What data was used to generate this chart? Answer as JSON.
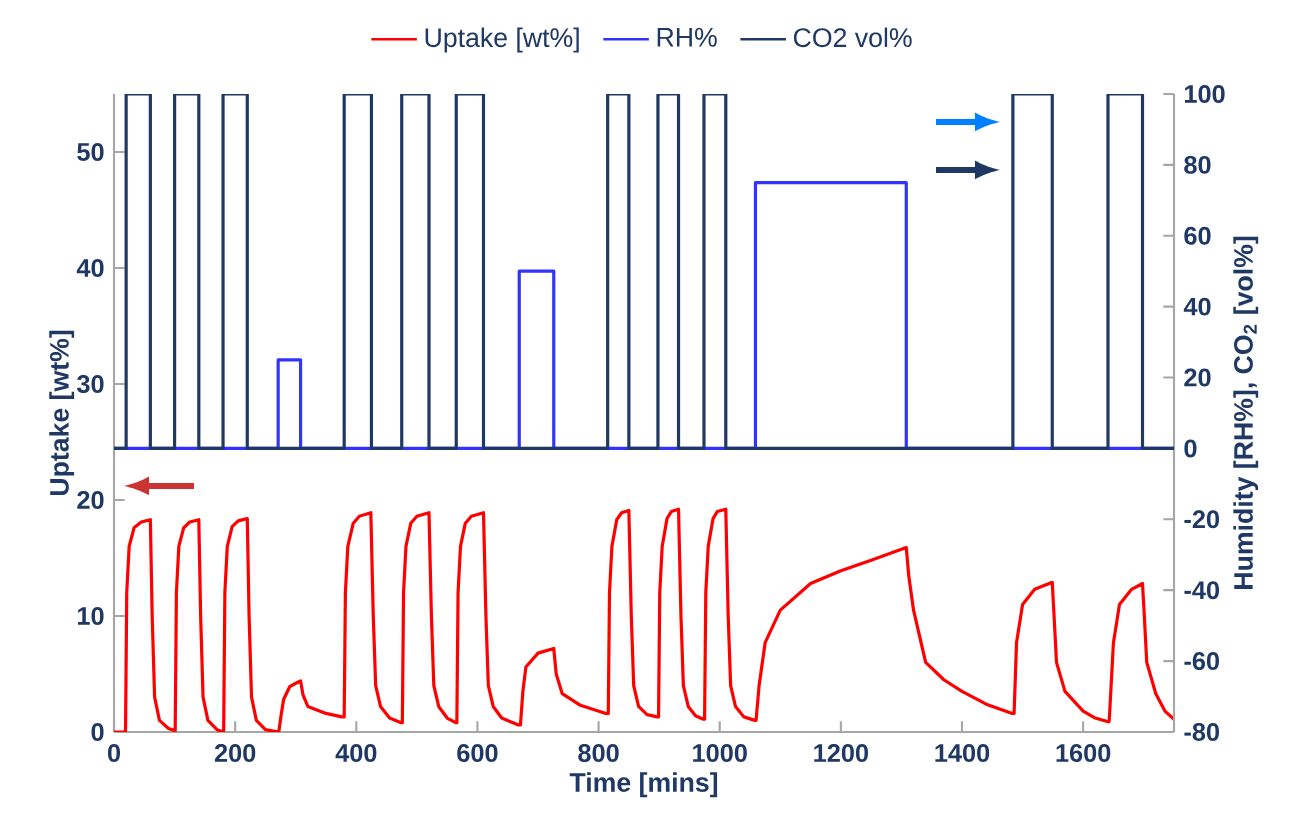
{
  "chart_data": {
    "type": "line",
    "xlabel": "Time [mins]",
    "ylabel": "Uptake [wt%]",
    "y2label": "Humidity [RH%], CO$_{2}$ [vol%]",
    "xlim": [
      0,
      1750
    ],
    "xticks": [
      0,
      200,
      400,
      600,
      800,
      1000,
      1200,
      1400,
      1600
    ],
    "ylim": [
      0,
      55
    ],
    "yticks": [
      0,
      10,
      20,
      30,
      40,
      50
    ],
    "y2lim": [
      -80,
      100
    ],
    "y2ticks": [
      -80,
      -60,
      -40,
      -20,
      0,
      20,
      40,
      60,
      80,
      100
    ],
    "legend": "top",
    "grid": false,
    "marker": "none",
    "line_style": "solid",
    "series": [
      {
        "name": "Uptake [wt%]",
        "color": "#ff0000",
        "axis": "y",
        "x": [
          0,
          19,
          21,
          25,
          33,
          45,
          60,
          63,
          67,
          75,
          90,
          101,
          103,
          107,
          115,
          125,
          140,
          143,
          147,
          155,
          170,
          181,
          183,
          187,
          195,
          205,
          220,
          223,
          227,
          235,
          250,
          272,
          276,
          280,
          290,
          300,
          308,
          312,
          320,
          350,
          376,
          380,
          382,
          386,
          395,
          405,
          424,
          428,
          432,
          440,
          455,
          474,
          476,
          478,
          482,
          490,
          500,
          520,
          524,
          528,
          536,
          550,
          564,
          566,
          568,
          572,
          580,
          590,
          610,
          614,
          618,
          626,
          640,
          668,
          671,
          675,
          680,
          700,
          726,
          730,
          740,
          770,
          812,
          816,
          818,
          822,
          830,
          838,
          850,
          854,
          858,
          866,
          880,
          897,
          899,
          901,
          905,
          913,
          920,
          932,
          936,
          940,
          948,
          960,
          973,
          975,
          977,
          981,
          989,
          996,
          1010,
          1014,
          1018,
          1026,
          1040,
          1058,
          1060,
          1065,
          1075,
          1100,
          1150,
          1200,
          1250,
          1308,
          1312,
          1320,
          1340,
          1370,
          1400,
          1440,
          1483,
          1486,
          1490,
          1500,
          1520,
          1549,
          1552,
          1556,
          1570,
          1600,
          1620,
          1640,
          1643,
          1650,
          1660,
          1680,
          1698,
          1701,
          1705,
          1720,
          1735,
          1750
        ],
        "values": [
          0,
          0,
          12,
          16,
          17.6,
          18.1,
          18.3,
          10,
          3,
          1,
          0.3,
          0.1,
          12,
          16,
          17.6,
          18.1,
          18.3,
          10,
          3,
          1,
          0.2,
          0,
          12,
          16,
          17.7,
          18.2,
          18.4,
          10,
          3,
          1,
          0.2,
          0,
          1.5,
          2.8,
          3.9,
          4.2,
          4.4,
          3.2,
          2.2,
          1.6,
          1.3,
          1.3,
          12,
          16,
          18,
          18.6,
          18.9,
          10,
          4,
          2.2,
          1.2,
          0.8,
          0.8,
          12,
          16,
          18,
          18.6,
          18.9,
          10,
          4,
          2.2,
          1.2,
          0.8,
          0.8,
          12,
          16,
          18,
          18.6,
          18.9,
          10,
          4,
          2.2,
          1.2,
          0.6,
          0.6,
          3.5,
          5.6,
          6.8,
          7.2,
          5,
          3.3,
          2.3,
          1.6,
          1.6,
          12,
          16,
          18.3,
          18.9,
          19.1,
          10,
          4,
          2.2,
          1.5,
          1.3,
          1.3,
          12,
          16,
          18.4,
          19,
          19.2,
          10,
          4,
          2.2,
          1.4,
          1.1,
          1.1,
          12,
          16,
          18.4,
          19,
          19.2,
          10,
          4,
          2.2,
          1.3,
          1,
          1,
          4,
          7.7,
          10.5,
          12.8,
          13.9,
          14.8,
          15.9,
          13.5,
          10.5,
          6,
          4.5,
          3.5,
          2.4,
          1.6,
          1.6,
          7.7,
          11,
          12.3,
          12.9,
          10,
          6,
          3.5,
          1.8,
          1.2,
          0.9,
          0.9,
          7.7,
          11,
          12.3,
          12.8,
          10,
          6,
          3.3,
          1.8,
          1.1
        ]
      },
      {
        "name": "RH%",
        "color": "#3333ff",
        "axis": "y2",
        "x": [
          0,
          271,
          271,
          308,
          308,
          669,
          669,
          726,
          726,
          1059,
          1059,
          1308,
          1308,
          1750
        ],
        "values": [
          0,
          0,
          25,
          25,
          0,
          0,
          50,
          50,
          0,
          0,
          75,
          75,
          0,
          0
        ]
      },
      {
        "name": "CO2 vol%",
        "color": "#1f3864",
        "axis": "y2",
        "x": [
          0,
          20,
          20,
          60,
          60,
          100,
          100,
          140,
          140,
          180,
          180,
          220,
          220,
          380,
          380,
          425,
          425,
          475,
          475,
          520,
          520,
          565,
          565,
          610,
          610,
          815,
          815,
          850,
          850,
          898,
          898,
          932,
          932,
          974,
          974,
          1010,
          1010,
          1484,
          1484,
          1549,
          1549,
          1641,
          1641,
          1698,
          1698,
          1750
        ],
        "values": [
          0,
          0,
          100,
          100,
          0,
          0,
          100,
          100,
          0,
          0,
          100,
          100,
          0,
          0,
          100,
          100,
          0,
          0,
          100,
          100,
          0,
          0,
          100,
          100,
          0,
          0,
          100,
          100,
          0,
          0,
          100,
          100,
          0,
          0,
          100,
          100,
          0,
          0,
          100,
          100,
          0,
          0,
          100,
          100,
          0,
          0
        ]
      }
    ]
  }
}
